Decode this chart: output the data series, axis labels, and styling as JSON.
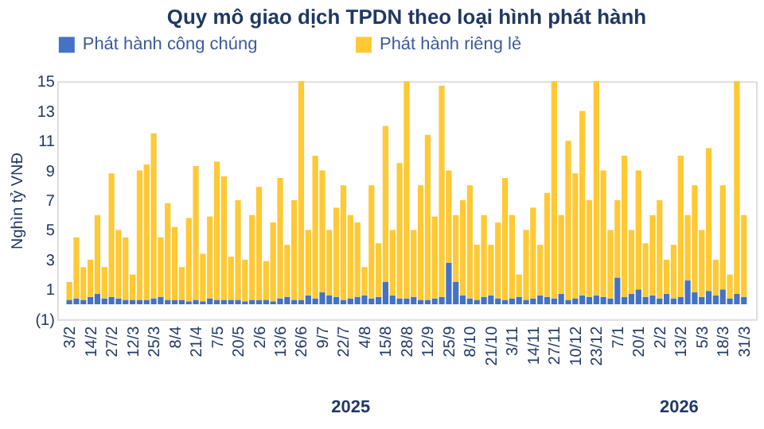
{
  "chart_data": {
    "type": "bar",
    "title": "Quy mô giao dịch TPDN theo loại hình phát hành",
    "ylabel": "Nghìn tỷ VNĐ",
    "stacked": true,
    "legend": "top",
    "grid": false,
    "categories": [
      "3/2",
      null,
      null,
      "14/2",
      null,
      null,
      "27/2",
      null,
      null,
      "12/3",
      null,
      null,
      "25/3",
      null,
      null,
      "8/4",
      null,
      null,
      "21/4",
      null,
      null,
      "7/5",
      null,
      null,
      "20/5",
      null,
      null,
      "2/6",
      null,
      null,
      "13/6",
      null,
      null,
      "26/6",
      null,
      null,
      "9/7",
      null,
      null,
      "22/7",
      null,
      null,
      "4/8",
      null,
      null,
      "15/8",
      null,
      null,
      "28/8",
      null,
      null,
      "12/9",
      null,
      null,
      "25/9",
      null,
      null,
      "8/10",
      null,
      null,
      "21/10",
      null,
      null,
      "3/11",
      null,
      null,
      "14/11",
      null,
      null,
      "27/11",
      null,
      null,
      "10/12",
      null,
      null,
      "23/12",
      null,
      null,
      "7/1",
      null,
      null,
      "20/1",
      null,
      null,
      "2/2",
      null,
      null,
      "13/2",
      null,
      null,
      "5/3",
      null,
      null,
      "18/3",
      null,
      null,
      "31/3"
    ],
    "ylim": [
      -1,
      15
    ],
    "yticks": [
      {
        "value": -1,
        "label": "(1)"
      },
      1,
      3,
      5,
      7,
      9,
      11,
      13,
      15
    ],
    "annotations": [
      "2025",
      "2026"
    ],
    "series": [
      {
        "name": "Phát hành công chúng",
        "color": "#4472c4",
        "values": [
          0.3,
          0.4,
          0.3,
          0.5,
          0.7,
          0.4,
          0.5,
          0.4,
          0.3,
          0.3,
          0.3,
          0.3,
          0.4,
          0.5,
          0.3,
          0.3,
          0.3,
          0.2,
          0.3,
          0.2,
          0.4,
          0.3,
          0.3,
          0.3,
          0.3,
          0.2,
          0.3,
          0.3,
          0.3,
          0.2,
          0.4,
          0.5,
          0.3,
          0.3,
          0.6,
          0.4,
          0.8,
          0.6,
          0.5,
          0.3,
          0.4,
          0.5,
          0.6,
          0.4,
          0.5,
          1.5,
          0.6,
          0.4,
          0.4,
          0.5,
          0.3,
          0.3,
          0.4,
          0.5,
          2.8,
          1.5,
          0.6,
          0.4,
          0.3,
          0.5,
          0.6,
          0.4,
          0.3,
          0.4,
          0.5,
          0.3,
          0.4,
          0.6,
          0.5,
          0.4,
          0.7,
          0.3,
          0.4,
          0.6,
          0.5,
          0.6,
          0.5,
          0.4,
          1.8,
          0.5,
          0.7,
          1.0,
          0.5,
          0.6,
          0.4,
          0.7,
          0.4,
          0.5,
          1.6,
          0.8,
          0.5,
          0.9,
          0.6,
          1.0,
          0.4,
          0.7,
          0.5
        ]
      },
      {
        "name": "Phát hành riêng lẻ",
        "color": "#ffc934",
        "values": [
          1.2,
          4.1,
          2.2,
          2.5,
          5.3,
          2.1,
          8.3,
          4.6,
          4.2,
          1.7,
          8.7,
          9.1,
          11.1,
          4.0,
          6.5,
          4.9,
          2.2,
          5.6,
          9.0,
          3.2,
          5.5,
          9.3,
          8.3,
          2.9,
          6.7,
          2.8,
          5.7,
          7.6,
          2.6,
          5.3,
          8.1,
          3.5,
          6.7,
          14.7,
          4.4,
          9.6,
          8.2,
          4.4,
          6.0,
          7.7,
          5.6,
          5.0,
          1.9,
          7.6,
          3.6,
          10.5,
          4.4,
          9.1,
          14.6,
          4.5,
          7.7,
          11.1,
          5.5,
          14.2,
          6.2,
          4.5,
          6.4,
          7.6,
          3.7,
          5.5,
          3.4,
          5.1,
          8.2,
          5.6,
          1.5,
          4.7,
          6.1,
          3.4,
          7.0,
          14.6,
          5.3,
          10.7,
          8.4,
          12.4,
          6.5,
          14.4,
          8.5,
          4.6,
          5.2,
          9.5,
          4.3,
          8.0,
          3.6,
          5.4,
          6.6,
          2.3,
          3.6,
          9.5,
          4.4,
          7.2,
          4.5,
          9.6,
          2.4,
          7.0,
          1.6,
          14.3,
          5.5
        ]
      }
    ]
  }
}
